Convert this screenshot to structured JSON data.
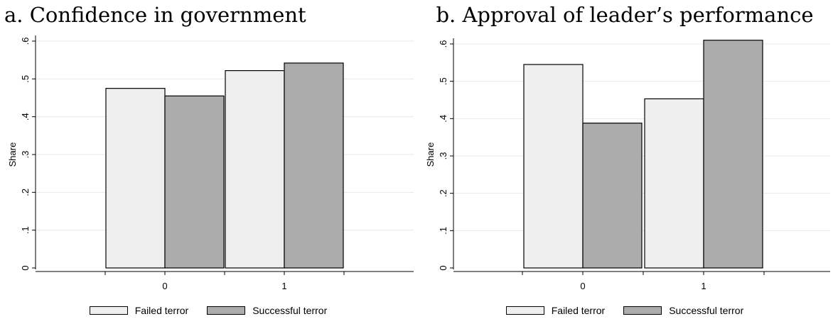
{
  "chart_data": [
    {
      "type": "bar",
      "title": "a. Confidence in government",
      "xlabel": "",
      "ylabel": "Share",
      "ylim": [
        0,
        0.6
      ],
      "yticks": [
        0,
        0.1,
        0.2,
        0.3,
        0.4,
        0.5,
        0.6
      ],
      "ytick_labels": [
        "0",
        ".1",
        ".2",
        ".3",
        ".4",
        ".5",
        ".6"
      ],
      "categories": [
        "0",
        "1"
      ],
      "series": [
        {
          "name": "Failed terror",
          "color": "#efefef",
          "values": [
            0.475,
            0.522
          ]
        },
        {
          "name": "Successful terror",
          "color": "#acacac",
          "values": [
            0.455,
            0.542
          ]
        }
      ],
      "grid": true,
      "legend_position": "bottom"
    },
    {
      "type": "bar",
      "title": "b. Approval of leader’s performance",
      "xlabel": "",
      "ylabel": "Share",
      "ylim": [
        0,
        0.6
      ],
      "yticks": [
        0,
        0.1,
        0.2,
        0.3,
        0.4,
        0.5,
        0.6
      ],
      "ytick_labels": [
        "0",
        ".1",
        ".2",
        ".3",
        ".4",
        ".5",
        ".6"
      ],
      "categories": [
        "0",
        "1"
      ],
      "series": [
        {
          "name": "Failed terror",
          "color": "#efefef",
          "values": [
            0.545,
            0.453
          ]
        },
        {
          "name": "Successful terror",
          "color": "#acacac",
          "values": [
            0.388,
            0.61
          ]
        }
      ],
      "grid": true,
      "legend_position": "bottom"
    }
  ]
}
